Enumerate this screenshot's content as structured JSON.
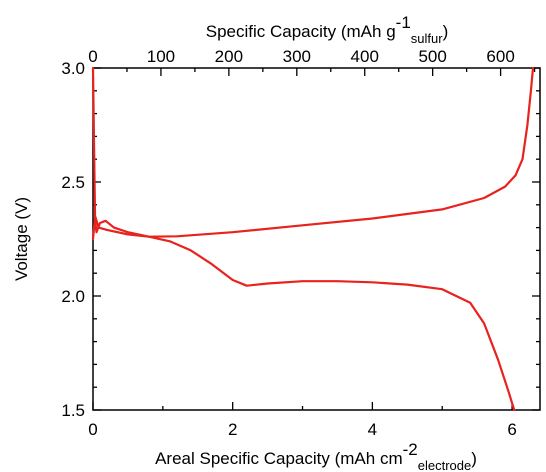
{
  "chart_data": {
    "type": "line",
    "xlabel_bottom": {
      "text": "Areal Specific Capacity (mAh cm",
      "sup": "-2",
      "sub": "electrode",
      "close": ")"
    },
    "xlabel_top": {
      "text": "Specific Capacity (mAh g",
      "sup": "-1",
      "sub": "sulfur",
      "close": ")"
    },
    "ylabel": "Voltage (V)",
    "xlim_bottom": [
      0,
      6.4
    ],
    "xlim_top": [
      0,
      658
    ],
    "ylim": [
      1.5,
      3.0
    ],
    "xticks_bottom": [
      "0",
      "2",
      "4",
      "6"
    ],
    "xticks_top": [
      "0",
      "100",
      "200",
      "300",
      "400",
      "500",
      "600"
    ],
    "yticks": [
      "1.5",
      "2.0",
      "2.5",
      "3.0"
    ],
    "line_color": "#e8221d",
    "series": [
      {
        "points": [
          [
            0.0,
            3.0
          ],
          [
            0.02,
            2.55
          ],
          [
            0.03,
            2.33
          ],
          [
            0.05,
            2.28
          ],
          [
            0.1,
            2.32
          ],
          [
            0.18,
            2.33
          ],
          [
            0.3,
            2.3
          ],
          [
            0.5,
            2.28
          ],
          [
            0.8,
            2.26
          ],
          [
            1.1,
            2.24
          ],
          [
            1.4,
            2.2
          ],
          [
            1.7,
            2.14
          ],
          [
            2.0,
            2.07
          ],
          [
            2.2,
            2.045
          ],
          [
            2.5,
            2.055
          ],
          [
            3.0,
            2.065
          ],
          [
            3.5,
            2.065
          ],
          [
            4.0,
            2.06
          ],
          [
            4.5,
            2.05
          ],
          [
            5.0,
            2.03
          ],
          [
            5.4,
            1.97
          ],
          [
            5.6,
            1.88
          ],
          [
            5.8,
            1.72
          ],
          [
            5.95,
            1.58
          ],
          [
            6.03,
            1.5
          ]
        ]
      },
      {
        "points": [
          [
            0.0,
            2.25
          ],
          [
            0.03,
            2.35
          ],
          [
            0.08,
            2.3
          ],
          [
            0.2,
            2.29
          ],
          [
            0.5,
            2.27
          ],
          [
            0.8,
            2.26
          ],
          [
            1.2,
            2.262
          ],
          [
            2.0,
            2.28
          ],
          [
            3.0,
            2.31
          ],
          [
            4.0,
            2.34
          ],
          [
            5.0,
            2.38
          ],
          [
            5.6,
            2.43
          ],
          [
            5.9,
            2.48
          ],
          [
            6.05,
            2.53
          ],
          [
            6.15,
            2.6
          ],
          [
            6.22,
            2.75
          ],
          [
            6.27,
            2.9
          ],
          [
            6.3,
            3.0
          ]
        ]
      }
    ]
  }
}
